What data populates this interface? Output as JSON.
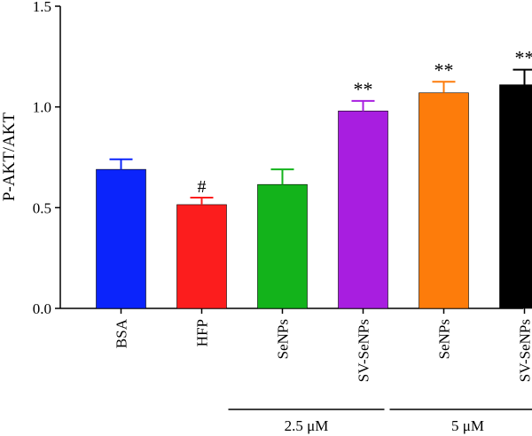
{
  "chart_data": {
    "type": "bar",
    "ylabel": "P-AKT/AKT",
    "ylim": [
      0,
      1.5
    ],
    "yticks": [
      "0.0",
      "0.5",
      "1.0",
      "1.5"
    ],
    "categories": [
      "BSA",
      "HFP",
      "SeNPs",
      "SV-SeNPs",
      "SeNPs",
      "SV-SeNPs"
    ],
    "values": [
      0.69,
      0.515,
      0.615,
      0.98,
      1.07,
      1.11
    ],
    "errors": [
      0.05,
      0.035,
      0.075,
      0.05,
      0.055,
      0.075
    ],
    "annotations": [
      "",
      "#",
      "",
      "**",
      "**",
      "**"
    ],
    "colors": [
      "#0b24fb",
      "#fc1d1d",
      "#13b31b",
      "#a81ee0",
      "#fd7c0b",
      "#000000"
    ],
    "groups": [
      {
        "label": "2.5 μM",
        "from": 2,
        "to": 3
      },
      {
        "label": "5 μM",
        "from": 4,
        "to": 5
      }
    ]
  }
}
